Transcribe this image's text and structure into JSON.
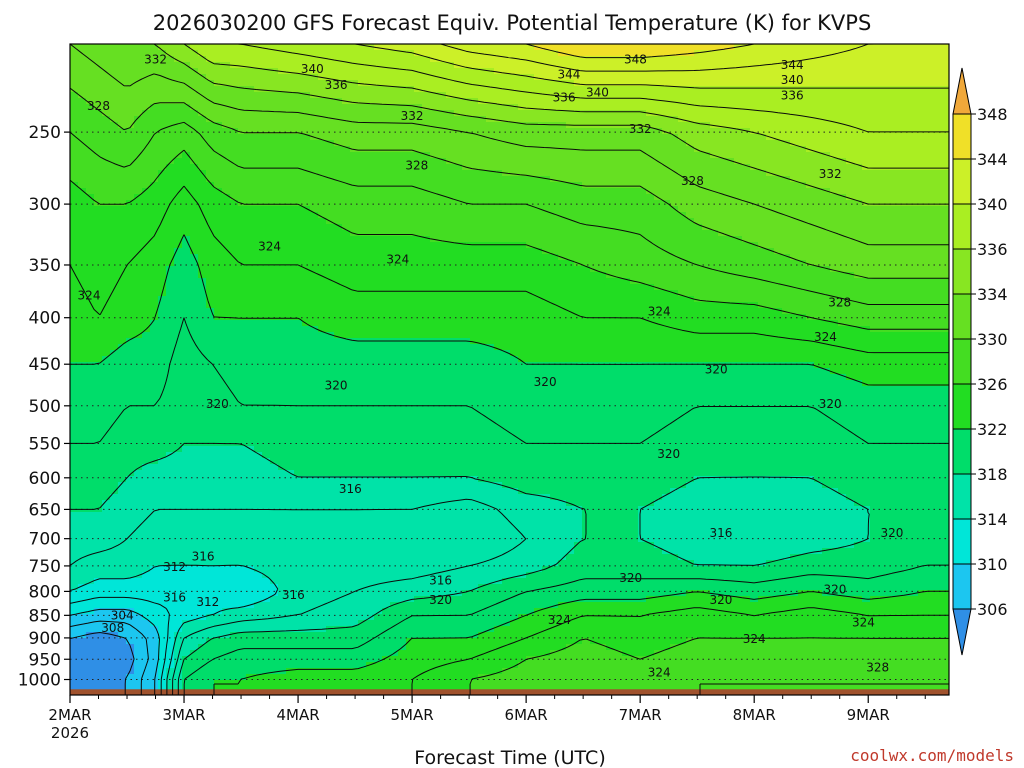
{
  "chart_data": {
    "type": "heatmap",
    "title": "2026030200 GFS Forecast Equiv. Potential Temperature (K) for KVPS",
    "xlabel": "Forecast Time (UTC)",
    "ylabel": "",
    "credit": "coolwx.com/models",
    "x_ticks": [
      "2MAR",
      "3MAR",
      "4MAR",
      "5MAR",
      "6MAR",
      "7MAR",
      "8MAR",
      "9MAR"
    ],
    "x_tick_values": [
      0,
      24,
      48,
      72,
      96,
      120,
      144,
      168
    ],
    "x_year_label": "2026",
    "xlim": [
      0,
      185
    ],
    "y_scale": "log-pressure",
    "ylim": [
      1040,
      200
    ],
    "y_ticks": [
      250,
      300,
      350,
      400,
      450,
      500,
      550,
      600,
      650,
      700,
      750,
      800,
      850,
      900,
      950,
      1000
    ],
    "colorbar": {
      "ticks": [
        306,
        310,
        314,
        318,
        322,
        326,
        330,
        334,
        336,
        340,
        344,
        348
      ],
      "levels": [
        302,
        306,
        310,
        314,
        318,
        322,
        326,
        330,
        334,
        336,
        340,
        344,
        348,
        352
      ],
      "colors": [
        "#2f8fe6",
        "#1cc6f0",
        "#00e6d8",
        "#00e3a8",
        "#00dd6a",
        "#22dd22",
        "#44dd22",
        "#66e022",
        "#88e622",
        "#aaee22",
        "#ccf028",
        "#f0e028",
        "#f0a83a"
      ]
    },
    "profile_pressure": [
      1000,
      950,
      900,
      850,
      800,
      750,
      700,
      650,
      600,
      550,
      500,
      450,
      400,
      350,
      300,
      250,
      200
    ],
    "profile_times": [
      0,
      6,
      12,
      18,
      24,
      30,
      36,
      48,
      60,
      72,
      84,
      96,
      108,
      120,
      132,
      144,
      156,
      168,
      180
    ],
    "profile_values": [
      [
        306,
        305,
        306,
        310,
        314,
        316,
        317,
        318,
        319,
        320,
        321,
        322,
        323,
        324,
        325,
        328,
        332
      ],
      [
        305,
        304,
        305,
        309,
        313,
        315,
        317,
        318,
        319,
        320,
        321,
        322,
        324,
        325,
        326,
        329,
        333
      ],
      [
        306,
        305,
        306,
        309,
        313,
        315,
        316,
        317,
        318,
        319,
        320,
        321,
        323,
        324,
        326,
        330,
        334
      ],
      [
        310,
        309,
        309,
        311,
        313,
        314,
        315,
        316,
        317,
        319,
        320,
        321,
        322,
        323,
        325,
        328,
        334
      ],
      [
        320,
        318,
        316,
        313,
        312,
        314,
        315,
        316,
        317,
        318,
        319,
        319,
        320,
        321,
        323,
        327,
        336
      ],
      [
        322,
        320,
        318,
        314,
        313,
        314,
        315,
        316,
        317,
        318,
        319,
        320,
        322,
        323,
        325,
        329,
        338
      ],
      [
        322,
        321,
        319,
        315,
        312,
        314,
        315,
        316,
        317,
        318,
        320,
        321,
        322,
        324,
        326,
        330,
        338
      ],
      [
        323,
        321,
        319,
        316,
        315,
        315,
        315,
        316,
        318,
        319,
        320,
        321,
        322,
        324,
        326,
        330,
        339
      ],
      [
        323,
        321,
        319,
        317,
        316,
        315,
        315,
        316,
        318,
        319,
        320,
        321,
        323,
        325,
        327,
        331,
        340
      ],
      [
        324,
        323,
        322,
        320,
        317,
        315,
        314,
        316,
        318,
        319,
        320,
        321,
        323,
        325,
        327,
        331,
        341
      ],
      [
        326,
        324,
        322,
        320,
        318,
        316,
        314,
        315,
        318,
        319,
        320,
        321,
        323,
        325,
        328,
        332,
        343
      ],
      [
        327,
        326,
        324,
        322,
        320,
        317,
        316,
        317,
        319,
        320,
        321,
        322,
        323,
        325,
        328,
        333,
        344
      ],
      [
        328,
        327,
        326,
        324,
        321,
        319,
        318,
        318,
        319,
        320,
        321,
        322,
        324,
        326,
        329,
        333,
        346
      ],
      [
        327,
        326,
        325,
        324,
        321,
        319,
        318,
        318,
        319,
        320,
        321,
        322,
        324,
        327,
        329,
        333,
        346
      ],
      [
        328,
        327,
        326,
        325,
        322,
        318,
        317,
        317,
        318,
        319,
        320,
        322,
        325,
        328,
        331,
        335,
        345
      ],
      [
        328,
        327,
        326,
        324,
        321,
        318,
        316,
        316,
        318,
        319,
        320,
        322,
        325,
        329,
        332,
        336,
        344
      ],
      [
        328,
        327,
        326,
        325,
        322,
        319,
        317,
        317,
        318,
        319,
        320,
        322,
        326,
        330,
        333,
        337,
        343
      ],
      [
        328,
        327,
        326,
        324,
        321,
        319,
        318,
        318,
        319,
        320,
        321,
        323,
        327,
        331,
        334,
        338,
        342
      ],
      [
        328,
        327,
        326,
        324,
        322,
        320,
        319,
        318,
        319,
        320,
        321,
        323,
        327,
        331,
        334,
        338,
        342
      ]
    ],
    "contour_labels": [
      {
        "text": "332",
        "t": 18,
        "p": 208
      },
      {
        "text": "340",
        "t": 51,
        "p": 213
      },
      {
        "text": "336",
        "t": 56,
        "p": 222
      },
      {
        "text": "348",
        "t": 119,
        "p": 208
      },
      {
        "text": "344",
        "t": 105,
        "p": 216
      },
      {
        "text": "340",
        "t": 111,
        "p": 226
      },
      {
        "text": "336",
        "t": 104,
        "p": 229
      },
      {
        "text": "344",
        "t": 152,
        "p": 211
      },
      {
        "text": "340",
        "t": 152,
        "p": 219
      },
      {
        "text": "336",
        "t": 152,
        "p": 228
      },
      {
        "text": "328",
        "t": 6,
        "p": 234
      },
      {
        "text": "332",
        "t": 72,
        "p": 240
      },
      {
        "text": "332",
        "t": 120,
        "p": 248
      },
      {
        "text": "328",
        "t": 73,
        "p": 272
      },
      {
        "text": "328",
        "t": 131,
        "p": 283
      },
      {
        "text": "332",
        "t": 160,
        "p": 278
      },
      {
        "text": "324",
        "t": 42,
        "p": 334
      },
      {
        "text": "324",
        "t": 69,
        "p": 345
      },
      {
        "text": "324",
        "t": 4,
        "p": 378
      },
      {
        "text": "324",
        "t": 124,
        "p": 394
      },
      {
        "text": "328",
        "t": 162,
        "p": 385
      },
      {
        "text": "324",
        "t": 159,
        "p": 420
      },
      {
        "text": "320",
        "t": 31,
        "p": 498
      },
      {
        "text": "320",
        "t": 56,
        "p": 475
      },
      {
        "text": "320",
        "t": 100,
        "p": 471
      },
      {
        "text": "320",
        "t": 136,
        "p": 456
      },
      {
        "text": "320",
        "t": 160,
        "p": 498
      },
      {
        "text": "320",
        "t": 126,
        "p": 565
      },
      {
        "text": "316",
        "t": 59,
        "p": 617
      },
      {
        "text": "316",
        "t": 137,
        "p": 690
      },
      {
        "text": "320",
        "t": 173,
        "p": 690
      },
      {
        "text": "316",
        "t": 28,
        "p": 732
      },
      {
        "text": "312",
        "t": 22,
        "p": 752
      },
      {
        "text": "316",
        "t": 22,
        "p": 812
      },
      {
        "text": "312",
        "t": 29,
        "p": 822
      },
      {
        "text": "316",
        "t": 47,
        "p": 807
      },
      {
        "text": "316",
        "t": 78,
        "p": 778
      },
      {
        "text": "320",
        "t": 78,
        "p": 818
      },
      {
        "text": "320",
        "t": 118,
        "p": 773
      },
      {
        "text": "320",
        "t": 137,
        "p": 818
      },
      {
        "text": "320",
        "t": 161,
        "p": 796
      },
      {
        "text": "324",
        "t": 103,
        "p": 860
      },
      {
        "text": "324",
        "t": 144,
        "p": 902
      },
      {
        "text": "324",
        "t": 167,
        "p": 866
      },
      {
        "text": "304",
        "t": 11,
        "p": 850
      },
      {
        "text": "308",
        "t": 9,
        "p": 878
      },
      {
        "text": "324",
        "t": 124,
        "p": 983
      },
      {
        "text": "328",
        "t": 170,
        "p": 970
      }
    ]
  }
}
